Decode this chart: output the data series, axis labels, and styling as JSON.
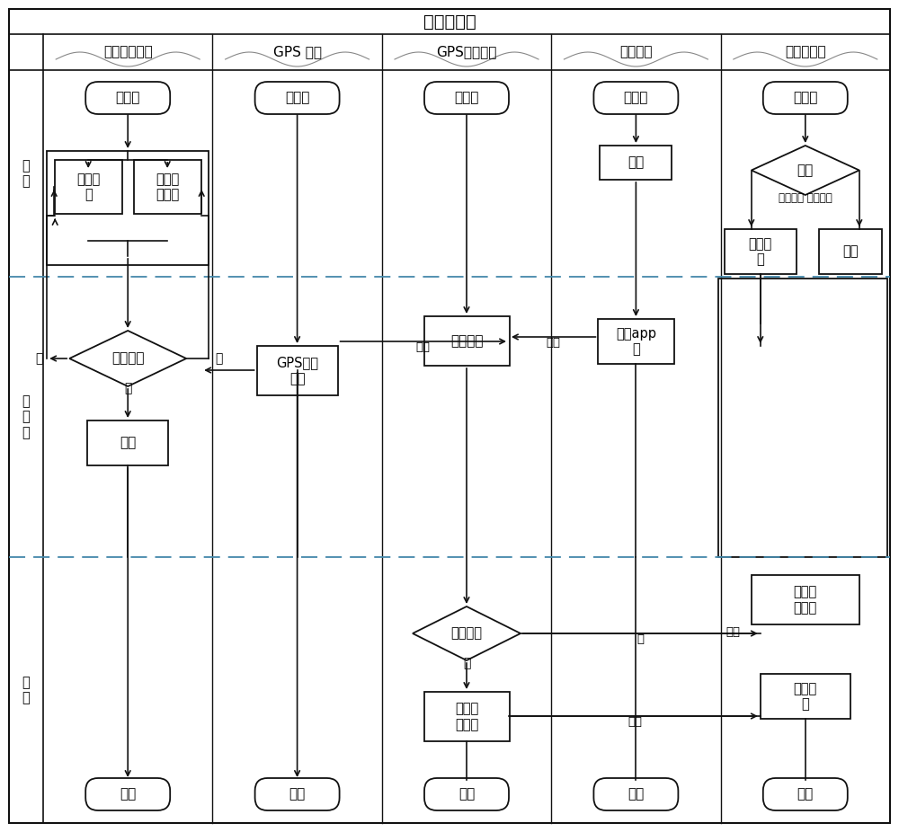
{
  "title": "总体流程图",
  "columns": [
    "疲劳检测模块",
    "GPS 定位",
    "GPS行驶记录",
    "手机终端",
    "互联网终端"
  ],
  "row_labels": [
    "待\n驾",
    "行\n驶\n中",
    "停\n止"
  ],
  "bg_color": "#ffffff",
  "line_color": "#000000",
  "box_color": "#ffffff",
  "dashed_color": "#4a90d9",
  "font_size": 11
}
